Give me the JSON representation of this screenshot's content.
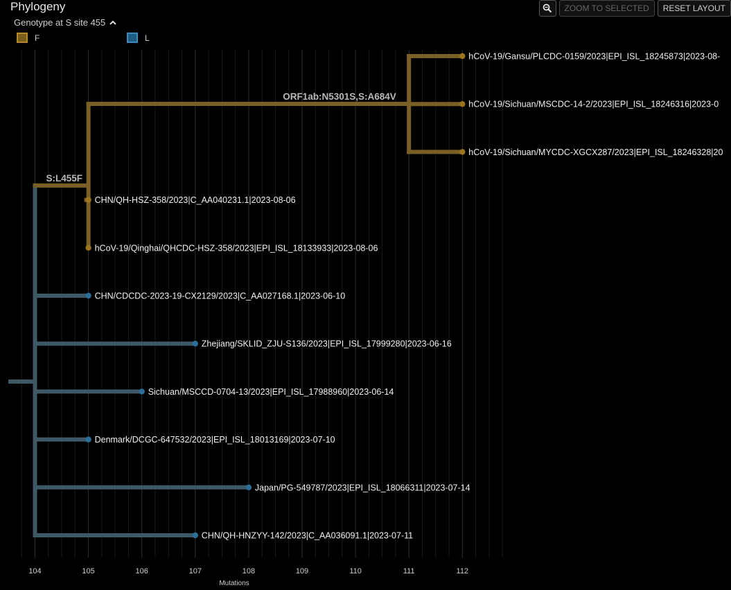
{
  "panel": {
    "title": "Phylogeny",
    "color_by_label": "Genotype at S site 455",
    "legend": [
      {
        "label": "F",
        "color": "#7d5f1c",
        "border": "#b68a27"
      },
      {
        "label": "L",
        "color": "#1f5b80",
        "border": "#3a8cbf"
      }
    ]
  },
  "toolbar": {
    "zoom_icon": "magnifier-minus-icon",
    "zoom_selected_label": "ZOOM TO SELECTED",
    "reset_layout_label": "RESET LAYOUT"
  },
  "axis": {
    "ticks": [
      "104",
      "105",
      "106",
      "107",
      "108",
      "109",
      "110",
      "111",
      "112"
    ],
    "title": "Mutations"
  },
  "colors": {
    "F_branch": "#7a5f26",
    "F_tip": "#9b7420",
    "L_branch": "#3f5866",
    "L_tip": "#2b6f99"
  },
  "branch_labels": [
    "S:L455F",
    "ORF1ab:N5301S,S:A684V"
  ],
  "tips": [
    {
      "label": "hCoV-19/Gansu/PLCDC-0159/2023|EPI_ISL_18245873|2023-08-",
      "div": 112,
      "group": "F"
    },
    {
      "label": "hCoV-19/Sichuan/MSCDC-14-2/2023|EPI_ISL_18246316|2023-0",
      "div": 112,
      "group": "F"
    },
    {
      "label": "hCoV-19/Sichuan/MYCDC-XGCX287/2023|EPI_ISL_18246328|20",
      "div": 112,
      "group": "F"
    },
    {
      "label": "CHN/QH-HSZ-358/2023|C_AA040231.1|2023-08-06",
      "div": 105,
      "group": "F"
    },
    {
      "label": "hCoV-19/Qinghai/QHCDC-HSZ-358/2023|EPI_ISL_18133933|2023-08-06",
      "div": 105,
      "group": "F"
    },
    {
      "label": "CHN/CDCDC-2023-19-CX2129/2023|C_AA027168.1|2023-06-10",
      "div": 105,
      "group": "L"
    },
    {
      "label": "Zhejiang/SKLID_ZJU-S136/2023|EPI_ISL_17999280|2023-06-16",
      "div": 107,
      "group": "L"
    },
    {
      "label": "Sichuan/MSCCD-0704-13/2023|EPI_ISL_17988960|2023-06-14",
      "div": 106,
      "group": "L"
    },
    {
      "label": "Denmark/DCGC-647532/2023|EPI_ISL_18013169|2023-07-10",
      "div": 105,
      "group": "L"
    },
    {
      "label": "Japan/PG-549787/2023|EPI_ISL_18066311|2023-07-14",
      "div": 108,
      "group": "L"
    },
    {
      "label": "CHN/QH-HNZYY-142/2023|C_AA036091.1|2023-07-11",
      "div": 107,
      "group": "L"
    }
  ]
}
